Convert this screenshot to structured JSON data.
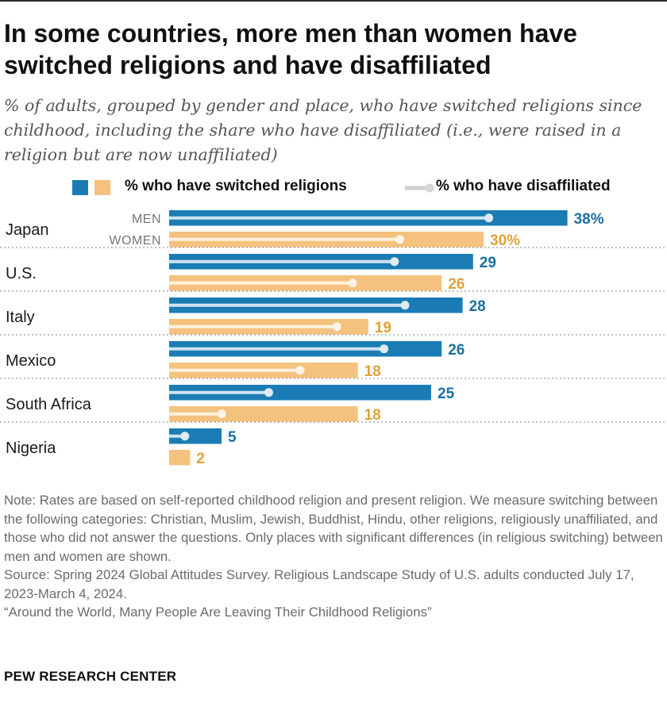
{
  "title": "In some countries, more men than women have switched religions and have disaffiliated",
  "subtitle": "% of adults, grouped by gender and place, who have switched religions since childhood, including the share who have disaffiliated (i.e., were raised in a religion but are now unaffiliated)",
  "legend": {
    "switched_label": "% who have switched religions",
    "disaffiliated_label": "% who have disaffiliated"
  },
  "colors": {
    "men": "#1b7cb5",
    "women": "#f4c27e",
    "men_text": "#1b6fa3",
    "women_text": "#e0a13a",
    "disaffiliated_line": "#cfe3f0",
    "disaffiliated_dot": "#dfeaf2"
  },
  "chart_data": {
    "type": "bar",
    "orientation": "horizontal",
    "categories": [
      "Japan",
      "U.S.",
      "Italy",
      "Mexico",
      "South Africa",
      "Nigeria"
    ],
    "group_labels": [
      "MEN",
      "WOMEN"
    ],
    "series": [
      {
        "name": "% who have switched religions",
        "group": "MEN",
        "values": [
          38,
          29,
          28,
          26,
          25,
          5
        ],
        "labels": [
          "38%",
          "29",
          "28",
          "26",
          "25",
          "5"
        ]
      },
      {
        "name": "% who have switched religions",
        "group": "WOMEN",
        "values": [
          30,
          26,
          19,
          18,
          18,
          2
        ],
        "labels": [
          "30%",
          "26",
          "19",
          "18",
          "18",
          "2"
        ]
      },
      {
        "name": "% who have disaffiliated",
        "group": "MEN",
        "values": [
          30.5,
          21.5,
          22.5,
          20.5,
          9.5,
          1.5
        ]
      },
      {
        "name": "% who have disaffiliated",
        "group": "WOMEN",
        "values": [
          22,
          17.5,
          16,
          12.5,
          5,
          null
        ]
      }
    ],
    "xlim": [
      0,
      38
    ],
    "legend_position": "top"
  },
  "notes": [
    "Note: Rates are based on self-reported childhood religion and present religion. We measure switching between the following categories: Christian, Muslim, Jewish, Buddhist, Hindu, other religions, religiously unaffiliated, and those who did not answer the questions. Only places with significant differences (in religious switching) between men and women are shown.",
    "Source: Spring 2024 Global Attitudes Survey. Religious Landscape Study of U.S. adults conducted July 17, 2023-March 4, 2024.",
    "“Around the World, Many People Are Leaving Their Childhood Religions”"
  ],
  "footer": "PEW RESEARCH CENTER"
}
